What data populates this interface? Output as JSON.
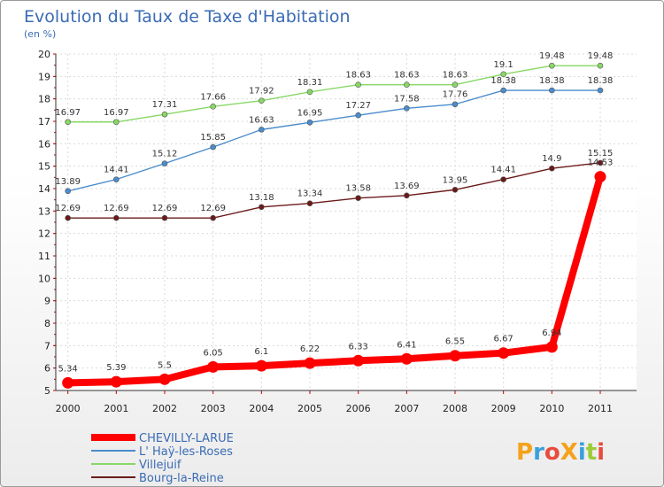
{
  "chart_data": {
    "type": "line",
    "title": "Evolution du Taux de Taxe d'Habitation",
    "subtitle": "(en %)",
    "ylim": [
      5,
      20
    ],
    "yticks": [
      5,
      6,
      7,
      8,
      9,
      10,
      11,
      12,
      13,
      14,
      15,
      16,
      17,
      18,
      19,
      20
    ],
    "x": [
      "2000",
      "2001",
      "2002",
      "2003",
      "2004",
      "2005",
      "2006",
      "2007",
      "2008",
      "2009",
      "2010",
      "2011"
    ],
    "grid": true,
    "legend_position": "bottom-left",
    "series": [
      {
        "name": "CHEVILLY-LARUE",
        "color": "#ff0000",
        "labels": [
          "5.34",
          "5.39",
          "5.5",
          "6.05",
          "6.1",
          "6.22",
          "6.33",
          "6.41",
          "6.55",
          "6.67",
          "6.94",
          "14.53"
        ],
        "values": [
          5.34,
          5.39,
          5.5,
          6.05,
          6.1,
          6.22,
          6.33,
          6.41,
          6.55,
          6.67,
          6.94,
          14.53
        ]
      },
      {
        "name": "L' Haÿ-les-Roses",
        "color": "#4a8ccc",
        "labels": [
          "13.89",
          "14.41",
          "15.12",
          "15.85",
          "16.63",
          "16.95",
          "17.27",
          "17.58",
          "17.76",
          "18.38",
          "18.38",
          "18.38"
        ],
        "values": [
          13.89,
          14.41,
          15.12,
          15.85,
          16.63,
          16.95,
          17.27,
          17.58,
          17.76,
          18.38,
          18.38,
          18.38
        ]
      },
      {
        "name": "Villejuif",
        "color": "#88d866",
        "labels": [
          "16.97",
          "16.97",
          "17.31",
          "17.66",
          "17.92",
          "18.31",
          "18.63",
          "18.63",
          "18.63",
          "19.1",
          "19.48",
          "19.48"
        ],
        "values": [
          16.97,
          16.97,
          17.31,
          17.66,
          17.92,
          18.31,
          18.63,
          18.63,
          18.63,
          19.1,
          19.48,
          19.48
        ]
      },
      {
        "name": "Bourg-la-Reine",
        "color": "#6b1a1a",
        "labels": [
          "12.69",
          "12.69",
          "12.69",
          "12.69",
          "13.18",
          "13.34",
          "13.58",
          "13.69",
          "13.95",
          "14.41",
          "14.9",
          "15.15"
        ],
        "values": [
          12.69,
          12.69,
          12.69,
          12.69,
          13.18,
          13.34,
          13.58,
          13.69,
          13.95,
          14.41,
          14.9,
          15.15
        ]
      }
    ]
  },
  "logo": {
    "text": "ProXiti"
  }
}
